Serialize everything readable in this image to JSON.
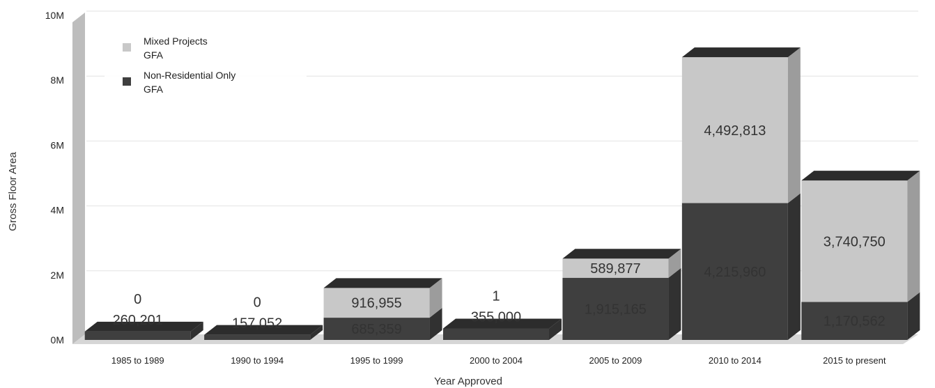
{
  "chart_data": {
    "type": "bar",
    "stacked": true,
    "three_d": true,
    "categories": [
      "1985 to 1989",
      "1990 to 1994",
      "1995 to 1999",
      "2000 to 2004",
      "2005 to 2009",
      "2010 to 2014",
      "2015 to present"
    ],
    "series": [
      {
        "name": "Non-Residential Only GFA",
        "name_lines": [
          "Non-Residential Only",
          "GFA"
        ],
        "values": [
          260201,
          157052,
          685359,
          355000,
          1915165,
          4215960,
          1170562
        ],
        "labels": [
          "260,201",
          "157,052",
          "685,359",
          "355,000",
          "1,915,165",
          "4,215,960",
          "1,170,562"
        ],
        "color": "#3f3f3f"
      },
      {
        "name": "Mixed Projects GFA",
        "name_lines": [
          "Mixed Projects",
          "GFA"
        ],
        "values": [
          0,
          0,
          916955,
          1,
          589877,
          4492813,
          3740750
        ],
        "labels": [
          "0",
          "0",
          "916,955",
          "1",
          "589,877",
          "4,492,813",
          "3,740,750"
        ],
        "color": "#c8c8c8"
      }
    ],
    "xlabel": "Year Approved",
    "ylabel": "Gross Floor Area",
    "yticks": [
      "0M",
      "2M",
      "4M",
      "6M",
      "8M",
      "10M"
    ],
    "ylim": [
      0,
      10000000
    ],
    "legend": "top-left",
    "grid": true
  }
}
